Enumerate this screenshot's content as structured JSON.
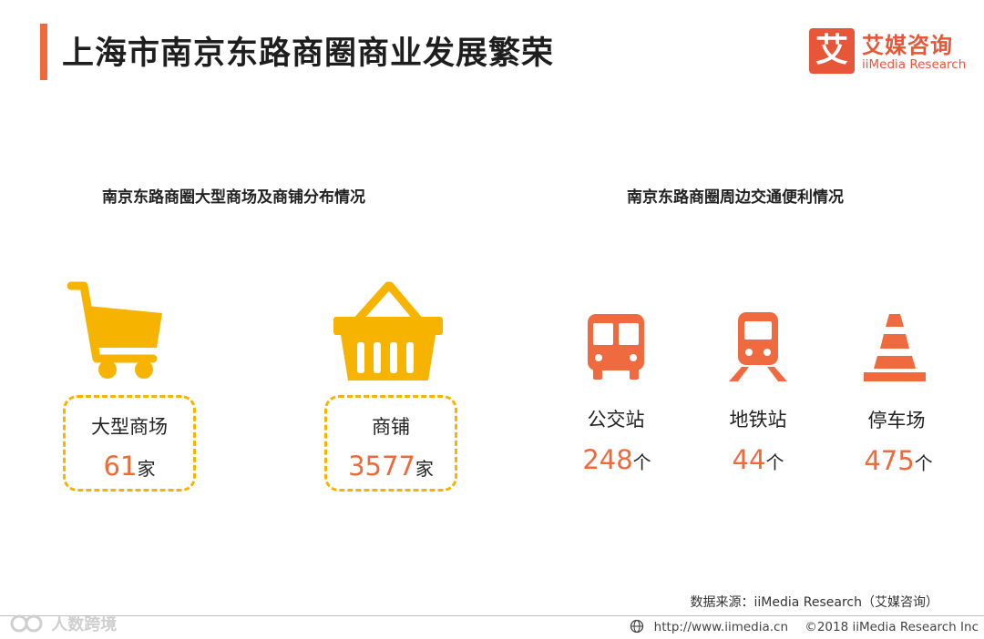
{
  "header": {
    "title": "上海市南京东路商圈商业发展繁荣",
    "logo_mark": "艾",
    "logo_cn": "艾媒咨询",
    "logo_en": "iiMedia Research"
  },
  "left_section": {
    "title": "南京东路商圈大型商场及商铺分布情况",
    "items": [
      {
        "label": "大型商场",
        "value": "61",
        "unit": "家",
        "icon": "shopping-cart-icon"
      },
      {
        "label": "商铺",
        "value": "3577",
        "unit": "家",
        "icon": "shopping-basket-icon"
      }
    ]
  },
  "right_section": {
    "title": "南京东路商圈周边交通便利情况",
    "items": [
      {
        "label": "公交站",
        "value": "248",
        "unit": "个",
        "icon": "bus-icon"
      },
      {
        "label": "地铁站",
        "value": "44",
        "unit": "个",
        "icon": "metro-icon"
      },
      {
        "label": "停车场",
        "value": "475",
        "unit": "个",
        "icon": "traffic-cone-icon"
      }
    ]
  },
  "footer": {
    "source": "数据来源：iiMedia Research（艾媒咨询）",
    "watermark": "人数跨境",
    "url": "http://www.iimedia.cn",
    "copyright": "©2018  iiMedia Research  Inc"
  },
  "colors": {
    "accent": "#ee6a3a",
    "icon_yellow": "#f6b400",
    "transport_red": "#f06a3f"
  }
}
